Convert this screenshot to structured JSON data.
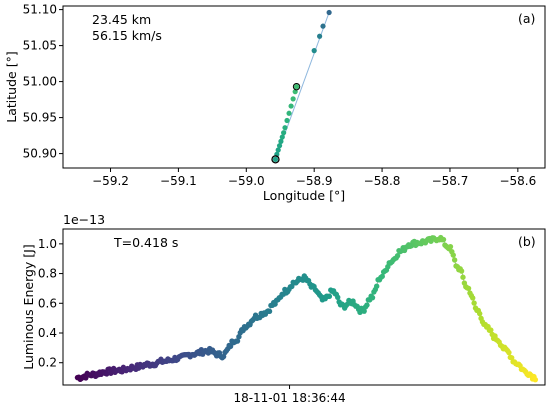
{
  "chart_data": [
    {
      "id": "a",
      "type": "scatter",
      "panel_label": "(a)",
      "xlabel": "Longitude [°]",
      "ylabel": "Latitude [°]",
      "xlim": [
        -59.27,
        -58.56
      ],
      "ylim": [
        50.88,
        51.105
      ],
      "xticks": [
        -59.2,
        -59.1,
        -59.0,
        -58.9,
        -58.8,
        -58.7,
        -58.6
      ],
      "xtick_labels": [
        "−59.2",
        "−59.1",
        "−59.0",
        "−58.9",
        "−58.8",
        "−58.7",
        "−58.6"
      ],
      "yticks": [
        50.9,
        50.95,
        51.0,
        51.05,
        51.1
      ],
      "ytick_labels": [
        "50.90",
        "50.95",
        "51.00",
        "51.05",
        "51.10"
      ],
      "annotations": [
        "23.45 km",
        "56.15 km/s"
      ],
      "line": {
        "x": [
          -58.957,
          -58.878
        ],
        "y": [
          50.892,
          51.096
        ],
        "color": "#8fb8de"
      },
      "start_marker": {
        "x": -58.957,
        "y": 50.892
      },
      "mid_marker": {
        "x": -58.926,
        "y": 50.993
      },
      "points": [
        {
          "x": -58.957,
          "y": 50.892,
          "c": "#1fa187"
        },
        {
          "x": -58.955,
          "y": 50.899,
          "c": "#1fa187"
        },
        {
          "x": -58.953,
          "y": 50.905,
          "c": "#20a386"
        },
        {
          "x": -58.951,
          "y": 50.911,
          "c": "#21a685"
        },
        {
          "x": -58.949,
          "y": 50.917,
          "c": "#22a884"
        },
        {
          "x": -58.947,
          "y": 50.923,
          "c": "#25ab82"
        },
        {
          "x": -58.945,
          "y": 50.929,
          "c": "#27ad81"
        },
        {
          "x": -58.943,
          "y": 50.936,
          "c": "#29af7f"
        },
        {
          "x": -58.94,
          "y": 50.946,
          "c": "#2db27d"
        },
        {
          "x": -58.937,
          "y": 50.956,
          "c": "#31b57b"
        },
        {
          "x": -58.934,
          "y": 50.966,
          "c": "#35b779"
        },
        {
          "x": -58.931,
          "y": 50.976,
          "c": "#3aba76"
        },
        {
          "x": -58.928,
          "y": 50.986,
          "c": "#3dbc74"
        },
        {
          "x": -58.926,
          "y": 50.993,
          "c": "#40bd72"
        },
        {
          "x": -58.9,
          "y": 51.043,
          "c": "#228c8d"
        },
        {
          "x": -58.892,
          "y": 51.063,
          "c": "#277f8e"
        },
        {
          "x": -58.887,
          "y": 51.077,
          "c": "#2c728e"
        },
        {
          "x": -58.878,
          "y": 51.096,
          "c": "#31688e"
        }
      ]
    },
    {
      "id": "b",
      "type": "scatter",
      "panel_label": "(b)",
      "ylabel": "Luminous Energy [J]",
      "offset_label": "1e−13",
      "annotation": "T=0.418 s",
      "xlim": [
        0,
        1
      ],
      "ylim": [
        0.05,
        1.1
      ],
      "yticks": [
        0.2,
        0.4,
        0.6,
        0.8,
        1.0
      ],
      "ytick_labels": [
        "0.2",
        "0.4",
        "0.6",
        "0.8",
        "1.0"
      ],
      "xtick": {
        "value": 0.47,
        "label": "18-11-01 18:36:44"
      },
      "series_x": [
        0.03,
        0.06,
        0.09,
        0.12,
        0.15,
        0.18,
        0.21,
        0.24,
        0.27,
        0.3,
        0.33,
        0.36,
        0.38,
        0.4,
        0.42,
        0.44,
        0.46,
        0.48,
        0.5,
        0.52,
        0.54,
        0.56,
        0.58,
        0.6,
        0.62,
        0.64,
        0.66,
        0.68,
        0.7,
        0.72,
        0.74,
        0.76,
        0.78,
        0.8,
        0.82,
        0.84,
        0.86,
        0.88,
        0.9,
        0.92,
        0.94,
        0.96,
        0.98
      ],
      "series_y": [
        0.1,
        0.12,
        0.14,
        0.15,
        0.17,
        0.19,
        0.21,
        0.23,
        0.26,
        0.28,
        0.25,
        0.36,
        0.45,
        0.51,
        0.54,
        0.6,
        0.68,
        0.74,
        0.77,
        0.7,
        0.62,
        0.68,
        0.58,
        0.61,
        0.55,
        0.64,
        0.78,
        0.88,
        0.95,
        1.0,
        1.01,
        1.02,
        1.04,
        0.98,
        0.84,
        0.7,
        0.55,
        0.43,
        0.36,
        0.28,
        0.2,
        0.14,
        0.1
      ],
      "colormap": "viridis"
    }
  ]
}
